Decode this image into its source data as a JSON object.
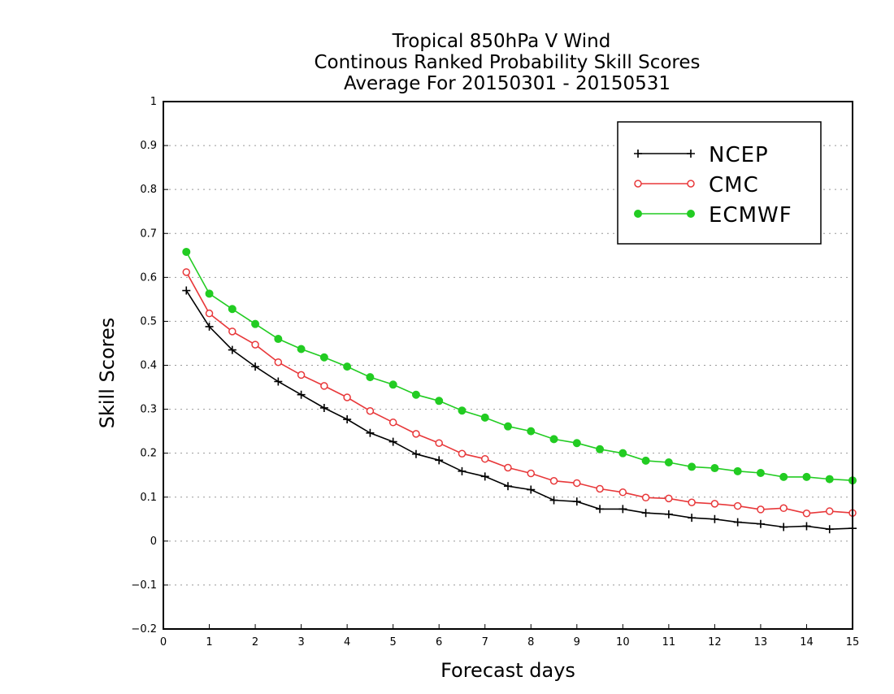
{
  "colors": {
    "ncep": "#000000",
    "cmc": "#e8383a",
    "ecmwf": "#22cc22",
    "grid": "#999999",
    "background": "#ffffff"
  },
  "chart_data": {
    "type": "line",
    "title": [
      "Tropical 850hPa V Wind",
      "Continous Ranked Probability Skill Scores",
      "Average For 20150301 - 20150531"
    ],
    "xlabel": "Forecast days",
    "ylabel": "Skill Scores",
    "xlim": [
      0,
      15
    ],
    "ylim": [
      -0.2,
      1
    ],
    "xticks": [
      0,
      1,
      2,
      3,
      4,
      5,
      6,
      7,
      8,
      9,
      10,
      11,
      12,
      13,
      14,
      15
    ],
    "xtick_labels": [
      "0",
      "1",
      "2",
      "3",
      "4",
      "5",
      "6",
      "7",
      "8",
      "9",
      "10",
      "11",
      "12",
      "13",
      "14",
      "15"
    ],
    "yticks": [
      -0.2,
      -0.1,
      0,
      0.1,
      0.2,
      0.3,
      0.4,
      0.5,
      0.6,
      0.7,
      0.8,
      0.9,
      1
    ],
    "ytick_labels": [
      "−0.2",
      "−0.1",
      "0",
      "0.1",
      "0.2",
      "0.3",
      "0.4",
      "0.5",
      "0.6",
      "0.7",
      "0.8",
      "0.9",
      "1"
    ],
    "grid": "horizontal dotted",
    "legend_position": "top-right",
    "x": [
      0.5,
      1,
      1.5,
      2,
      2.5,
      3,
      3.5,
      4,
      4.5,
      5,
      5.5,
      6,
      6.5,
      7,
      7.5,
      8,
      8.5,
      9,
      9.5,
      10,
      10.5,
      11,
      11.5,
      12,
      12.5,
      13,
      13.5,
      14,
      14.5,
      15
    ],
    "series": [
      {
        "name": "NCEP",
        "marker": "plus",
        "color_key": "ncep",
        "values": [
          0.57,
          0.488,
          0.435,
          0.397,
          0.363,
          0.333,
          0.303,
          0.277,
          0.246,
          0.226,
          0.198,
          0.184,
          0.159,
          0.147,
          0.125,
          0.117,
          0.093,
          0.09,
          0.073,
          0.073,
          0.064,
          0.061,
          0.053,
          0.05,
          0.043,
          0.039,
          0.032,
          0.034,
          0.027,
          0.029
        ]
      },
      {
        "name": "CMC",
        "marker": "open-circle",
        "color_key": "cmc",
        "values": [
          0.612,
          0.518,
          0.477,
          0.447,
          0.407,
          0.378,
          0.353,
          0.327,
          0.296,
          0.27,
          0.244,
          0.223,
          0.199,
          0.187,
          0.167,
          0.154,
          0.137,
          0.132,
          0.119,
          0.111,
          0.099,
          0.097,
          0.088,
          0.085,
          0.08,
          0.072,
          0.075,
          0.063,
          0.068,
          0.064
        ]
      },
      {
        "name": "ECMWF",
        "marker": "filled-circle",
        "color_key": "ecmwf",
        "values": [
          0.658,
          0.563,
          0.528,
          0.494,
          0.46,
          0.437,
          0.418,
          0.397,
          0.373,
          0.356,
          0.333,
          0.319,
          0.297,
          0.281,
          0.261,
          0.25,
          0.232,
          0.223,
          0.209,
          0.2,
          0.183,
          0.179,
          0.169,
          0.166,
          0.159,
          0.155,
          0.146,
          0.146,
          0.141,
          0.138
        ]
      }
    ]
  }
}
